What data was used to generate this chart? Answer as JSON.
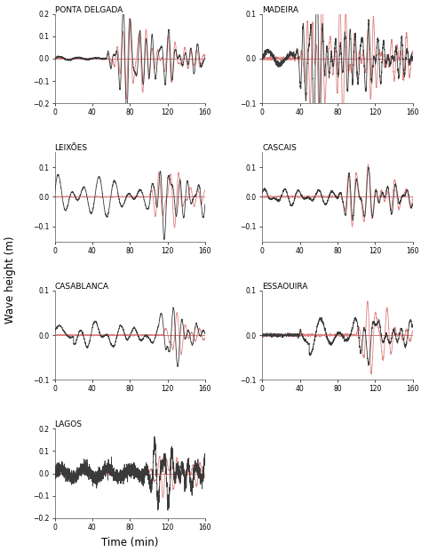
{
  "stations": [
    {
      "name": "PONTA DELGADA",
      "ylim": [
        -0.2,
        0.2
      ],
      "yticks": [
        -0.2,
        -0.1,
        0.0,
        0.1,
        0.2
      ]
    },
    {
      "name": "MADEIRA",
      "ylim": [
        -0.1,
        0.1
      ],
      "yticks": [
        -0.1,
        0.0,
        0.1
      ]
    },
    {
      "name": "LEIXÕES",
      "ylim": [
        -0.15,
        0.15
      ],
      "yticks": [
        -0.1,
        0.0,
        0.1
      ]
    },
    {
      "name": "CASCAIS",
      "ylim": [
        -0.15,
        0.15
      ],
      "yticks": [
        -0.1,
        0.0,
        0.1
      ]
    },
    {
      "name": "CASABLANCA",
      "ylim": [
        -0.1,
        0.1
      ],
      "yticks": [
        -0.1,
        0.0,
        0.1
      ]
    },
    {
      "name": "ESSAOUIRA",
      "ylim": [
        -0.1,
        0.1
      ],
      "yticks": [
        -0.1,
        0.0,
        0.1
      ]
    },
    {
      "name": "LAGOS",
      "ylim": [
        -0.2,
        0.2
      ],
      "yticks": [
        -0.2,
        -0.1,
        0.0,
        0.1,
        0.2
      ]
    }
  ],
  "xlim": [
    0,
    160
  ],
  "xticks": [
    0,
    40,
    80,
    120,
    160
  ],
  "xlabel": "Time (min)",
  "ylabel": "Wave height (m)",
  "obs_color": "#3a3a3a",
  "syn_color": "#e08080",
  "hline_color": "#d06060",
  "linewidth": 0.6,
  "figsize": [
    4.74,
    6.3
  ],
  "dpi": 100
}
